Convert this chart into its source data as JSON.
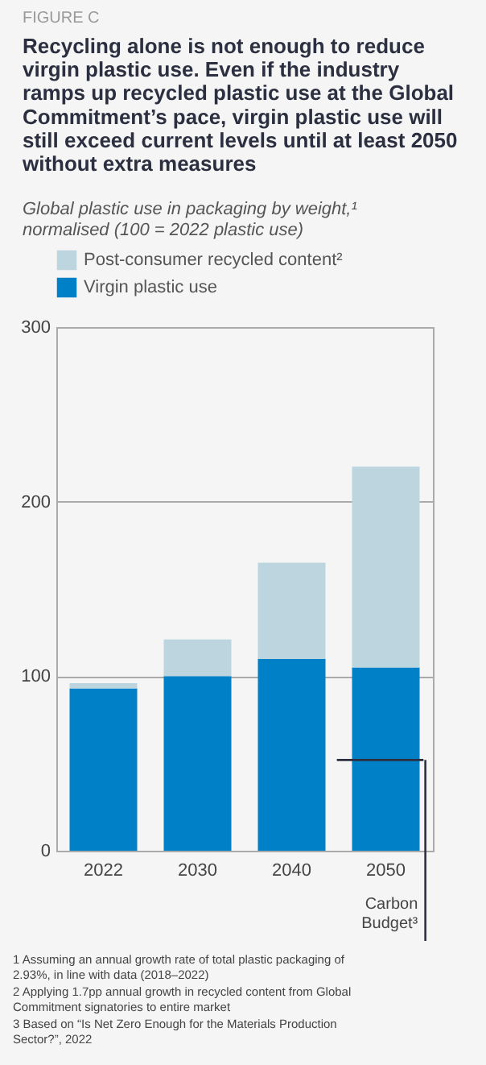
{
  "chart_data": {
    "type": "bar",
    "stacked": true,
    "title": "Recycling alone is not enough to reduce\nvirgin plastic use. Even if the industry\nramps up recycled plastic use at the Global\nCommitment’s pace, virgin plastic use will\nstill exceed current levels until at least 2050\nwithout extra measures",
    "subtitle": "Global plastic use in packaging by weight,¹\nnormalised (100 = 2022 plastic use)",
    "categories": [
      "2022",
      "2030",
      "2040",
      "2050"
    ],
    "series": [
      {
        "name": "Virgin plastic use",
        "color": "#0080c6",
        "values": [
          93,
          100,
          110,
          105
        ]
      },
      {
        "name": "Post-consumer recycled content²",
        "color": "#bcd5df",
        "values": [
          3,
          21,
          55,
          115
        ]
      }
    ],
    "ylim": [
      0,
      300
    ],
    "yticks": [
      0,
      100,
      200,
      300
    ],
    "grid": "y",
    "legend": "top left",
    "ref_lines": [
      {
        "axis": "y",
        "value": 52,
        "label": "Carbon\nBudget³",
        "color": "#2b2f3f"
      }
    ],
    "annotations": [
      "FIGURE C",
      "1  Assuming an annual growth rate of total plastic packaging of\n    2.93%, in line with data (2018–2022)",
      "2  Applying 1.7pp annual growth in recycled content from Global\n    Commitment signatories to entire market",
      "3  Based on “Is Net Zero Enough for the Materials Production\n    Sector?”, 2022"
    ]
  }
}
